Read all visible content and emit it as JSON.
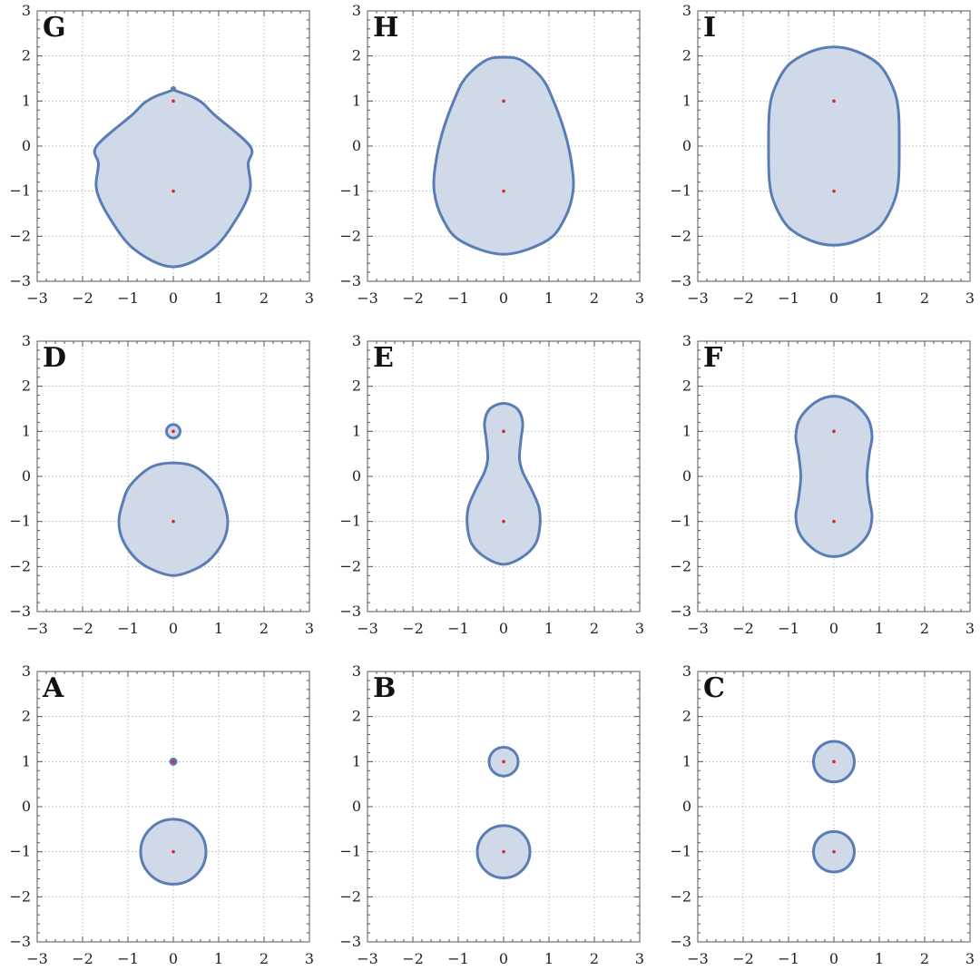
{
  "chart_data": [
    {
      "type": "contour",
      "label": "G",
      "centers": [
        [
          0,
          1
        ],
        [
          0,
          -1
        ]
      ],
      "xlim": [
        -3,
        3
      ],
      "ylim": [
        -3,
        3
      ],
      "xticks": [
        -3,
        -2,
        -1,
        0,
        1,
        2,
        3
      ],
      "yticks": [
        -3,
        -2,
        -1,
        0,
        1,
        2,
        3
      ],
      "grid": true,
      "curves": [
        {
          "x": 0,
          "y_top": 1.3,
          "y_bottom": -2.68,
          "half_widths": [
            [
              1.25,
              0
            ],
            [
              1.1,
              0.4
            ],
            [
              0.95,
              0.65
            ],
            [
              0.7,
              0.9
            ],
            [
              0.0,
              1.69
            ],
            [
              -0.4,
              1.65
            ],
            [
              -0.97,
              1.69
            ],
            [
              -1.6,
              1.4
            ],
            [
              -2.3,
              0.85
            ]
          ]
        }
      ]
    },
    {
      "type": "contour",
      "label": "H",
      "centers": [
        [
          0,
          1
        ],
        [
          0,
          -1
        ]
      ],
      "xlim": [
        -3,
        3
      ],
      "ylim": [
        -3,
        3
      ],
      "xticks": [
        -3,
        -2,
        -1,
        0,
        1,
        2,
        3
      ],
      "yticks": [
        -3,
        -2,
        -1,
        0,
        1,
        2,
        3
      ],
      "grid": true,
      "curves": [
        {
          "x": 0,
          "y_top": 1.97,
          "y_bottom": -2.4,
          "half_widths": [
            [
              1.9,
              0.4
            ],
            [
              1.5,
              0.85
            ],
            [
              1.0,
              1.1
            ],
            [
              0.3,
              1.35
            ],
            [
              -0.4,
              1.5
            ],
            [
              -1.0,
              1.53
            ],
            [
              -1.6,
              1.35
            ],
            [
              -2.1,
              0.95
            ]
          ]
        }
      ]
    },
    {
      "type": "contour",
      "label": "I",
      "centers": [
        [
          0,
          1
        ],
        [
          0,
          -1
        ]
      ],
      "xlim": [
        -3,
        3
      ],
      "ylim": [
        -3,
        3
      ],
      "xticks": [
        -3,
        -2,
        -1,
        0,
        1,
        2,
        3
      ],
      "yticks": [
        -3,
        -2,
        -1,
        0,
        1,
        2,
        3
      ],
      "grid": true,
      "curves": [
        {
          "x": 0,
          "y_top": 2.2,
          "y_bottom": -2.2,
          "half_widths": [
            [
              2.1,
              0.5
            ],
            [
              1.8,
              1.0
            ],
            [
              1.3,
              1.3
            ],
            [
              0.8,
              1.42
            ],
            [
              0.0,
              1.44
            ],
            [
              -0.8,
              1.42
            ],
            [
              -1.3,
              1.3
            ],
            [
              -1.8,
              1.0
            ],
            [
              -2.1,
              0.5
            ]
          ]
        }
      ]
    },
    {
      "type": "contour",
      "label": "D",
      "centers": [
        [
          0,
          1
        ],
        [
          0,
          -1
        ]
      ],
      "xlim": [
        -3,
        3
      ],
      "ylim": [
        -3,
        3
      ],
      "xticks": [
        -3,
        -2,
        -1,
        0,
        1,
        2,
        3
      ],
      "yticks": [
        -3,
        -2,
        -1,
        0,
        1,
        2,
        3
      ],
      "grid": true,
      "curves": [
        {
          "circle": [
            0,
            1,
            0.15
          ]
        },
        {
          "x": 0,
          "y_top": 0.3,
          "y_bottom": -2.2,
          "half_widths": [
            [
              0.2,
              0.5
            ],
            [
              -0.2,
              0.95
            ],
            [
              -0.6,
              1.12
            ],
            [
              -1.0,
              1.2
            ],
            [
              -1.4,
              1.12
            ],
            [
              -1.8,
              0.85
            ],
            [
              -2.05,
              0.5
            ]
          ]
        }
      ]
    },
    {
      "type": "contour",
      "label": "E",
      "centers": [
        [
          0,
          1
        ],
        [
          0,
          -1
        ]
      ],
      "xlim": [
        -3,
        3
      ],
      "ylim": [
        -3,
        3
      ],
      "xticks": [
        -3,
        -2,
        -1,
        0,
        1,
        2,
        3
      ],
      "yticks": [
        -3,
        -2,
        -1,
        0,
        1,
        2,
        3
      ],
      "grid": true,
      "curves": [
        {
          "x": 0,
          "y_top": 1.62,
          "y_bottom": -1.95,
          "half_widths": [
            [
              1.5,
              0.3
            ],
            [
              1.2,
              0.42
            ],
            [
              0.8,
              0.38
            ],
            [
              0.4,
              0.35
            ],
            [
              0.1,
              0.42
            ],
            [
              -0.3,
              0.62
            ],
            [
              -0.7,
              0.78
            ],
            [
              -1.1,
              0.8
            ],
            [
              -1.5,
              0.7
            ],
            [
              -1.8,
              0.4
            ]
          ]
        }
      ]
    },
    {
      "type": "contour",
      "label": "F",
      "centers": [
        [
          0,
          1
        ],
        [
          0,
          -1
        ]
      ],
      "xlim": [
        -3,
        3
      ],
      "ylim": [
        -3,
        3
      ],
      "xticks": [
        -3,
        -2,
        -1,
        0,
        1,
        2,
        3
      ],
      "yticks": [
        -3,
        -2,
        -1,
        0,
        1,
        2,
        3
      ],
      "grid": true,
      "curves": [
        {
          "x": 0,
          "y_top": 1.78,
          "y_bottom": -1.78,
          "half_widths": [
            [
              1.65,
              0.4
            ],
            [
              1.3,
              0.74
            ],
            [
              0.9,
              0.84
            ],
            [
              0.5,
              0.78
            ],
            [
              0.0,
              0.73
            ],
            [
              -0.5,
              0.78
            ],
            [
              -0.9,
              0.84
            ],
            [
              -1.3,
              0.74
            ],
            [
              -1.65,
              0.4
            ]
          ]
        }
      ]
    },
    {
      "type": "contour",
      "label": "A",
      "centers": [
        [
          0,
          1
        ],
        [
          0,
          -1
        ]
      ],
      "xlim": [
        -3,
        3
      ],
      "ylim": [
        -3,
        3
      ],
      "xticks": [
        -3,
        -2,
        -1,
        0,
        1,
        2,
        3
      ],
      "yticks": [
        -3,
        -2,
        -1,
        0,
        1,
        2,
        3
      ],
      "grid": true,
      "curves": [
        {
          "circle": [
            0,
            1,
            0.06
          ]
        },
        {
          "circle": [
            0,
            -1,
            0.72
          ]
        }
      ]
    },
    {
      "type": "contour",
      "label": "B",
      "centers": [
        [
          0,
          1
        ],
        [
          0,
          -1
        ]
      ],
      "xlim": [
        -3,
        3
      ],
      "ylim": [
        -3,
        3
      ],
      "xticks": [
        -3,
        -2,
        -1,
        0,
        1,
        2,
        3
      ],
      "yticks": [
        -3,
        -2,
        -1,
        0,
        1,
        2,
        3
      ],
      "grid": true,
      "curves": [
        {
          "circle": [
            0,
            1,
            0.32
          ]
        },
        {
          "circle": [
            0,
            -1,
            0.58
          ]
        }
      ]
    },
    {
      "type": "contour",
      "label": "C",
      "centers": [
        [
          0,
          1
        ],
        [
          0,
          -1
        ]
      ],
      "xlim": [
        -3,
        3
      ],
      "ylim": [
        -3,
        3
      ],
      "xticks": [
        -3,
        -2,
        -1,
        0,
        1,
        2,
        3
      ],
      "yticks": [
        -3,
        -2,
        -1,
        0,
        1,
        2,
        3
      ],
      "grid": true,
      "curves": [
        {
          "circle": [
            0,
            1,
            0.45
          ]
        },
        {
          "circle": [
            0,
            -1,
            0.45
          ]
        }
      ]
    }
  ],
  "colors": {
    "fill": "#cfd9e8",
    "stroke": "#5a7db5",
    "center": "#d62728"
  }
}
